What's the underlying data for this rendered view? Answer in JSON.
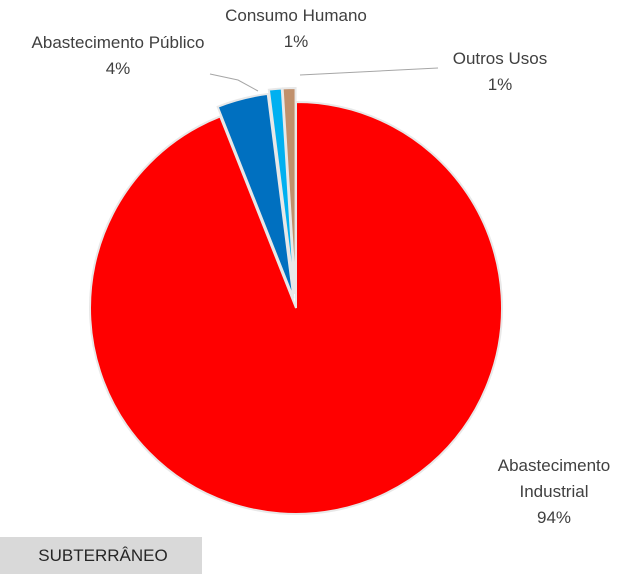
{
  "chart_data": {
    "type": "pie",
    "start_angle_deg": 0,
    "direction": "clockwise",
    "slices": [
      {
        "label_lines": [
          "Abastecimento",
          "Industrial"
        ],
        "value": 94,
        "value_label": "94%",
        "color": "#ff0000"
      },
      {
        "label_lines": [
          "Abastecimento Público"
        ],
        "value": 4,
        "value_label": "4%",
        "color": "#0070c0"
      },
      {
        "label_lines": [
          "Consumo Humano"
        ],
        "value": 1,
        "value_label": "1%",
        "color": "#00b0f0"
      },
      {
        "label_lines": [
          "Outros Usos"
        ],
        "value": 1,
        "value_label": "1%",
        "color": "#c0906c"
      }
    ],
    "separator_color": "#e8e8e8",
    "leader_line_color": "#a6a6a6"
  },
  "panel_tag": "SUBTERRÂNEO"
}
